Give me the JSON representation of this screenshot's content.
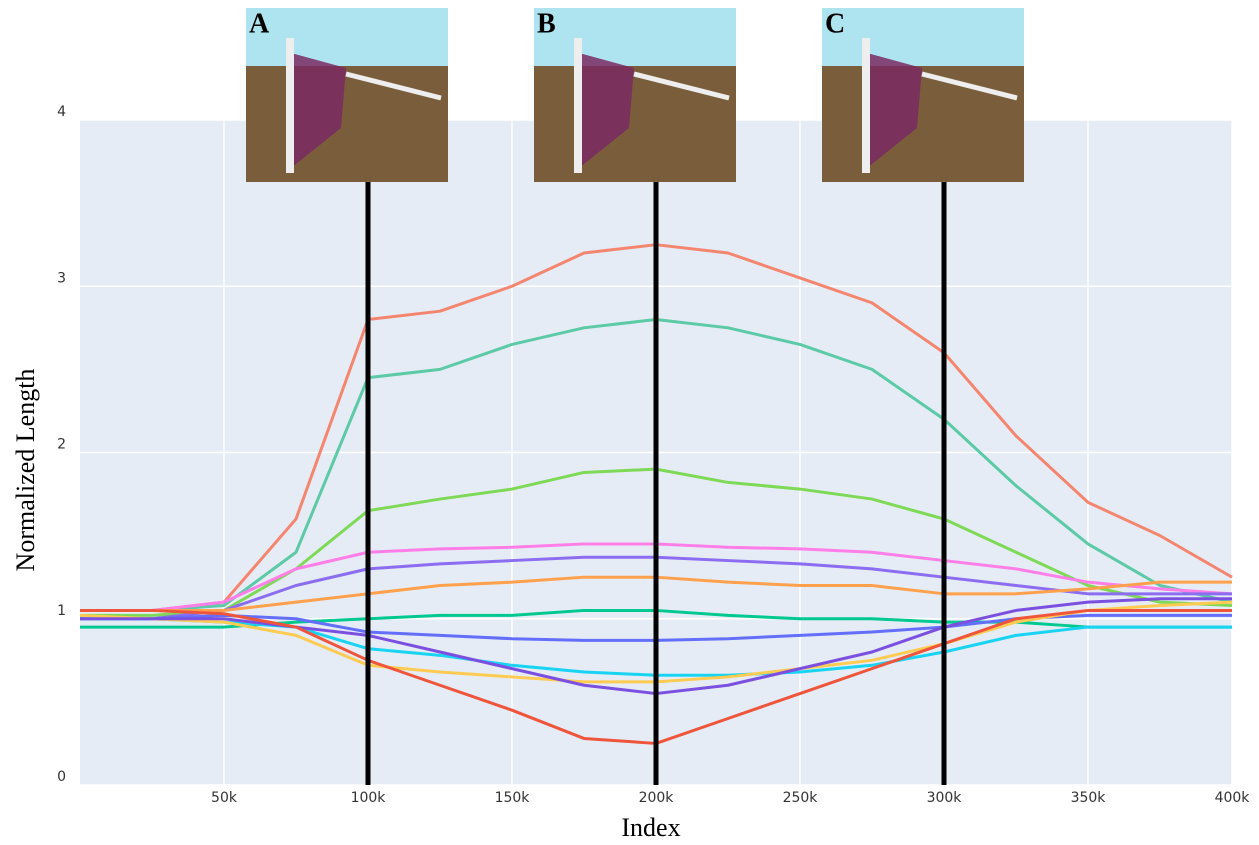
{
  "chart_data": {
    "type": "line",
    "xlabel": "Index",
    "ylabel": "Normalized Length",
    "x": [
      0,
      25000,
      50000,
      75000,
      100000,
      125000,
      150000,
      175000,
      200000,
      225000,
      250000,
      275000,
      300000,
      325000,
      350000,
      375000,
      400000
    ],
    "series": [
      {
        "color": "#f4866f",
        "values": [
          1.05,
          1.05,
          1.1,
          1.6,
          2.8,
          2.85,
          3.0,
          3.2,
          3.25,
          3.2,
          3.05,
          2.9,
          2.6,
          2.1,
          1.7,
          1.5,
          1.25
        ]
      },
      {
        "color": "#5ccaa6",
        "values": [
          1.05,
          1.05,
          1.08,
          1.4,
          2.45,
          2.5,
          2.65,
          2.75,
          2.8,
          2.75,
          2.65,
          2.5,
          2.2,
          1.8,
          1.45,
          1.2,
          1.1
        ]
      },
      {
        "color": "#7ed957",
        "values": [
          1.02,
          1.02,
          1.05,
          1.3,
          1.65,
          1.72,
          1.78,
          1.88,
          1.9,
          1.82,
          1.78,
          1.72,
          1.6,
          1.4,
          1.2,
          1.1,
          1.08
        ]
      },
      {
        "color": "#ff7ee8",
        "values": [
          1.05,
          1.05,
          1.1,
          1.3,
          1.4,
          1.42,
          1.43,
          1.45,
          1.45,
          1.43,
          1.42,
          1.4,
          1.35,
          1.3,
          1.22,
          1.18,
          1.15
        ]
      },
      {
        "color": "#8c6cf0",
        "values": [
          1.0,
          1.0,
          1.05,
          1.2,
          1.3,
          1.33,
          1.35,
          1.37,
          1.37,
          1.35,
          1.33,
          1.3,
          1.25,
          1.2,
          1.15,
          1.15,
          1.15
        ]
      },
      {
        "color": "#ffa04d",
        "values": [
          1.05,
          1.05,
          1.05,
          1.1,
          1.15,
          1.2,
          1.22,
          1.25,
          1.25,
          1.22,
          1.2,
          1.2,
          1.15,
          1.15,
          1.18,
          1.22,
          1.22
        ]
      },
      {
        "color": "#00c98f",
        "values": [
          0.95,
          0.95,
          0.95,
          0.98,
          1.0,
          1.02,
          1.02,
          1.05,
          1.05,
          1.02,
          1.0,
          1.0,
          0.98,
          0.98,
          0.95,
          0.95,
          0.95
        ]
      },
      {
        "color": "#636efa",
        "values": [
          1.0,
          1.0,
          1.02,
          1.0,
          0.92,
          0.9,
          0.88,
          0.87,
          0.87,
          0.88,
          0.9,
          0.92,
          0.95,
          1.0,
          1.02,
          1.02,
          1.02
        ]
      },
      {
        "color": "#19d3f3",
        "values": [
          1.0,
          1.0,
          0.98,
          0.95,
          0.82,
          0.78,
          0.72,
          0.68,
          0.66,
          0.66,
          0.68,
          0.72,
          0.8,
          0.9,
          0.95,
          0.95,
          0.95
        ]
      },
      {
        "color": "#fecb52",
        "values": [
          1.02,
          1.0,
          0.98,
          0.9,
          0.72,
          0.68,
          0.65,
          0.62,
          0.62,
          0.65,
          0.7,
          0.75,
          0.85,
          0.98,
          1.05,
          1.08,
          1.1
        ]
      },
      {
        "color": "#7b4fe0",
        "values": [
          1.0,
          1.0,
          1.0,
          0.95,
          0.9,
          0.8,
          0.7,
          0.6,
          0.55,
          0.6,
          0.7,
          0.8,
          0.95,
          1.05,
          1.1,
          1.12,
          1.12
        ]
      },
      {
        "color": "#ef553b",
        "values": [
          1.05,
          1.05,
          1.03,
          0.95,
          0.75,
          0.6,
          0.45,
          0.28,
          0.25,
          0.4,
          0.55,
          0.7,
          0.85,
          1.0,
          1.05,
          1.05,
          1.05
        ]
      }
    ],
    "xlim": [
      0,
      400000
    ],
    "ylim": [
      0,
      4
    ],
    "xticks": [
      {
        "value": 50000,
        "label": "50k"
      },
      {
        "value": 100000,
        "label": "100k"
      },
      {
        "value": 150000,
        "label": "150k"
      },
      {
        "value": 200000,
        "label": "200k"
      },
      {
        "value": 250000,
        "label": "250k"
      },
      {
        "value": 300000,
        "label": "300k"
      },
      {
        "value": 350000,
        "label": "350k"
      },
      {
        "value": 400000,
        "label": "400k"
      }
    ],
    "yticks": [
      0,
      1,
      2,
      3,
      4
    ],
    "grid": true,
    "panels": [
      {
        "label": "A",
        "x": 100000
      },
      {
        "label": "B",
        "x": 200000
      },
      {
        "label": "C",
        "x": 300000
      }
    ]
  }
}
